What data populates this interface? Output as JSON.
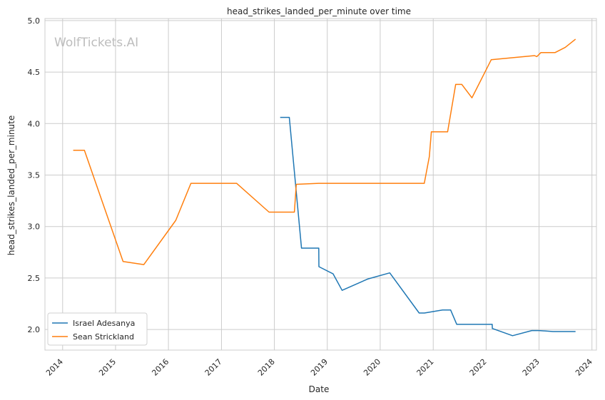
{
  "watermark": "WolfTickets.AI",
  "chart_data": {
    "type": "line",
    "title": "head_strikes_landed_per_minute over time",
    "xlabel": "Date",
    "ylabel": "head_strikes_landed_per_minute",
    "x_ticks": [
      "2014",
      "2015",
      "2016",
      "2017",
      "2018",
      "2019",
      "2020",
      "2021",
      "2022",
      "2023",
      "2024"
    ],
    "y_ticks": [
      "2.0",
      "2.5",
      "3.0",
      "3.5",
      "4.0",
      "4.5",
      "5.0"
    ],
    "xlim": [
      "2013-09-01",
      "2024-02-01"
    ],
    "ylim": [
      1.8,
      5.02
    ],
    "grid": true,
    "legend_position": "lower-left",
    "series": [
      {
        "name": "Israel Adesanya",
        "color": "#1f77b4",
        "points": [
          [
            "2018-02-10",
            4.06
          ],
          [
            "2018-04-14",
            4.06
          ],
          [
            "2018-07-07",
            2.79
          ],
          [
            "2018-11-03",
            2.79
          ],
          [
            "2018-11-04",
            2.61
          ],
          [
            "2019-02-10",
            2.54
          ],
          [
            "2019-04-13",
            2.38
          ],
          [
            "2019-10-06",
            2.49
          ],
          [
            "2020-03-07",
            2.55
          ],
          [
            "2020-09-26",
            2.16
          ],
          [
            "2020-11-01",
            2.16
          ],
          [
            "2021-03-06",
            2.19
          ],
          [
            "2021-05-01",
            2.19
          ],
          [
            "2021-06-12",
            2.05
          ],
          [
            "2022-02-12",
            2.05
          ],
          [
            "2022-02-13",
            2.01
          ],
          [
            "2022-07-02",
            1.94
          ],
          [
            "2022-11-12",
            1.99
          ],
          [
            "2023-01-01",
            1.99
          ],
          [
            "2023-04-08",
            1.98
          ],
          [
            "2023-09-10",
            1.98
          ]
        ]
      },
      {
        "name": "Sean Strickland",
        "color": "#ff7f0e",
        "points": [
          [
            "2014-03-15",
            3.74
          ],
          [
            "2014-05-31",
            3.74
          ],
          [
            "2015-02-22",
            2.66
          ],
          [
            "2015-07-15",
            2.63
          ],
          [
            "2016-02-21",
            3.06
          ],
          [
            "2016-06-04",
            3.42
          ],
          [
            "2017-04-15",
            3.42
          ],
          [
            "2017-11-25",
            3.14
          ],
          [
            "2018-05-19",
            3.14
          ],
          [
            "2018-06-01",
            3.41
          ],
          [
            "2018-11-03",
            3.42
          ],
          [
            "2020-10-31",
            3.42
          ],
          [
            "2020-12-05",
            3.68
          ],
          [
            "2020-12-19",
            3.92
          ],
          [
            "2021-04-10",
            3.92
          ],
          [
            "2021-06-05",
            4.38
          ],
          [
            "2021-07-17",
            4.38
          ],
          [
            "2021-09-25",
            4.25
          ],
          [
            "2022-02-05",
            4.62
          ],
          [
            "2022-12-01",
            4.66
          ],
          [
            "2022-12-17",
            4.65
          ],
          [
            "2023-01-14",
            4.69
          ],
          [
            "2023-04-22",
            4.69
          ],
          [
            "2023-07-01",
            4.74
          ],
          [
            "2023-09-10",
            4.82
          ]
        ]
      }
    ]
  }
}
